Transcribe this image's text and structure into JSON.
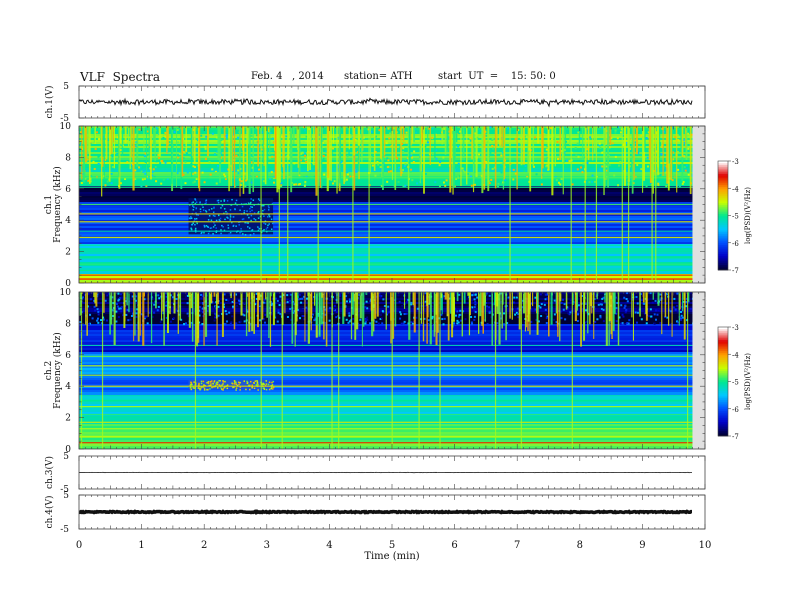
{
  "header": {
    "title": "VLF  Spectra",
    "date": "Feb. 4   , 2014",
    "station": "station= ATH",
    "start": "start  UT  =    15: 50: 0"
  },
  "chart_data": {
    "type": "heatmap",
    "x_axis": {
      "label": "Time  (min)",
      "range": [
        0,
        10
      ],
      "ticks": [
        0,
        1,
        2,
        3,
        4,
        5,
        6,
        7,
        8,
        9,
        10
      ],
      "tick_labels": [
        "0",
        "1",
        "2",
        "3",
        "4",
        "5",
        "6",
        "7",
        "8",
        "9",
        "10"
      ]
    },
    "panels": [
      {
        "id": "ch1-waveform",
        "type": "line",
        "ylabel": "ch.1(V)",
        "ylim": [
          -5,
          5
        ],
        "tick_labels": [
          "5",
          "-5"
        ],
        "mean_level": 0.0,
        "noise_amplitude": 0.8
      },
      {
        "id": "ch1-spectrogram",
        "type": "heatmap",
        "ylabel": "ch.1\nFrequency (kHz)",
        "ylim": [
          0,
          10
        ],
        "tick_labels": [
          "0",
          "2",
          "4",
          "6",
          "8",
          "10"
        ],
        "colorbar": {
          "label": "log(PSD)(V²/Hz)",
          "range": [
            -7,
            -3
          ],
          "tick_labels": [
            "-3",
            "-4",
            "-5",
            "-6",
            "-7"
          ]
        }
      },
      {
        "id": "ch2-spectrogram",
        "type": "heatmap",
        "ylabel": "ch.2\nFrequency (kHz)",
        "ylim": [
          0,
          10
        ],
        "tick_labels": [
          "0",
          "2",
          "4",
          "6",
          "8",
          "10"
        ],
        "colorbar": {
          "label": "log(PSD)(V²/Hz)",
          "range": [
            -7,
            -3
          ],
          "tick_labels": [
            "-3",
            "-4",
            "-5",
            "-6",
            "-7"
          ]
        }
      },
      {
        "id": "ch3-waveform",
        "type": "line",
        "ylabel": "ch.3(V)",
        "ylim": [
          -5,
          5
        ],
        "tick_labels": [
          "5",
          "-5"
        ],
        "mean_level": 0.0,
        "noise_amplitude": 0.05
      },
      {
        "id": "ch4-waveform",
        "type": "line",
        "ylabel": "ch.4(V)",
        "ylim": [
          -5,
          5
        ],
        "tick_labels": [
          "5",
          "-5"
        ],
        "mean_level": 0.0,
        "noise_amplitude": 0.15
      }
    ],
    "data_end_min": 9.8,
    "colormap": [
      "#000033",
      "#0000c8",
      "#0050ff",
      "#00c8ff",
      "#00e890",
      "#c8ff00",
      "#ffa000",
      "#e00000",
      "#ffffff"
    ]
  }
}
